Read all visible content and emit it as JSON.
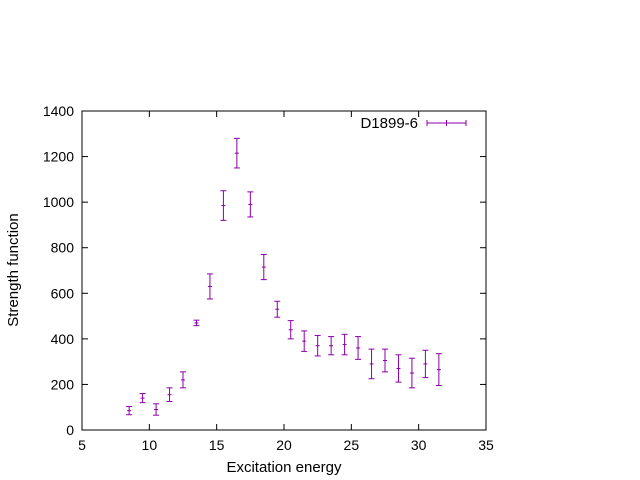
{
  "chart_data": {
    "type": "scatter",
    "title": "",
    "xlabel": "Excitation energy",
    "ylabel": "Strength function",
    "xlim": [
      5,
      35
    ],
    "ylim": [
      0,
      1400
    ],
    "xticks": [
      5,
      10,
      15,
      20,
      25,
      30,
      35
    ],
    "yticks": [
      0,
      200,
      400,
      600,
      800,
      1000,
      1200,
      1400
    ],
    "grid": false,
    "legend_position": "top-right",
    "series": [
      {
        "name": "D1899-6",
        "color": "#8b00a8",
        "style": "points-with-y-error-bars",
        "points": [
          {
            "x": 8.5,
            "y": 85,
            "err": 18
          },
          {
            "x": 9.5,
            "y": 140,
            "err": 20
          },
          {
            "x": 10.5,
            "y": 90,
            "err": 25
          },
          {
            "x": 11.5,
            "y": 155,
            "err": 30
          },
          {
            "x": 12.5,
            "y": 220,
            "err": 35
          },
          {
            "x": 13.5,
            "y": 470,
            "err": 12
          },
          {
            "x": 14.5,
            "y": 630,
            "err": 55
          },
          {
            "x": 15.5,
            "y": 985,
            "err": 65
          },
          {
            "x": 16.5,
            "y": 1215,
            "err": 65
          },
          {
            "x": 17.5,
            "y": 990,
            "err": 55
          },
          {
            "x": 18.5,
            "y": 715,
            "err": 55
          },
          {
            "x": 19.5,
            "y": 530,
            "err": 35
          },
          {
            "x": 20.5,
            "y": 440,
            "err": 40
          },
          {
            "x": 21.5,
            "y": 390,
            "err": 45
          },
          {
            "x": 22.5,
            "y": 370,
            "err": 45
          },
          {
            "x": 23.5,
            "y": 370,
            "err": 40
          },
          {
            "x": 24.5,
            "y": 375,
            "err": 45
          },
          {
            "x": 25.5,
            "y": 360,
            "err": 50
          },
          {
            "x": 26.5,
            "y": 290,
            "err": 65
          },
          {
            "x": 27.5,
            "y": 305,
            "err": 50
          },
          {
            "x": 28.5,
            "y": 270,
            "err": 60
          },
          {
            "x": 29.5,
            "y": 250,
            "err": 65
          },
          {
            "x": 30.5,
            "y": 290,
            "err": 60
          },
          {
            "x": 31.5,
            "y": 265,
            "err": 70
          }
        ]
      }
    ]
  }
}
